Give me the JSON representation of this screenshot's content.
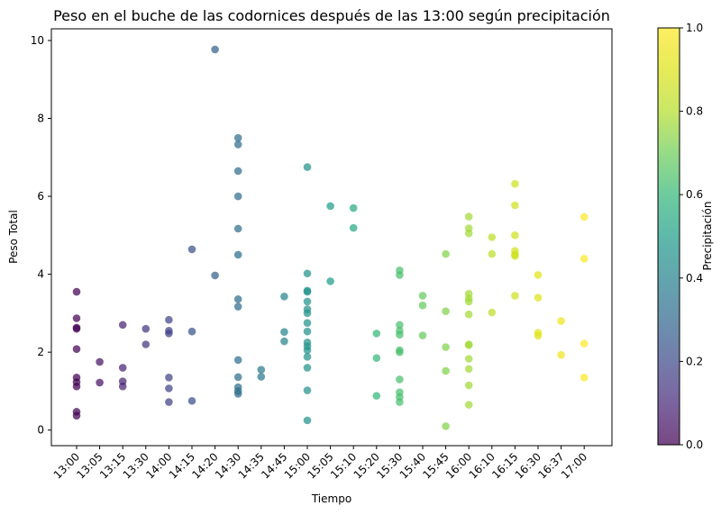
{
  "chart_data": {
    "type": "scatter",
    "title": "Peso en el buche de las codornices después de las 13:00 según precipitación",
    "xlabel": "Tiempo",
    "ylabel": "Peso Total",
    "ylim": [
      -0.4,
      10.3
    ],
    "yticks": [
      0,
      2,
      4,
      6,
      8,
      10
    ],
    "grid": false,
    "categories": [
      "13:00",
      "13:05",
      "13:15",
      "13:30",
      "14:00",
      "14:15",
      "14:20",
      "14:30",
      "14:35",
      "14:45",
      "15:00",
      "15:05",
      "15:10",
      "15:20",
      "15:30",
      "15:40",
      "15:45",
      "16:00",
      "16:10",
      "16:15",
      "16:30",
      "16:37",
      "17:00"
    ],
    "colorbar": {
      "label": "Precipitación",
      "range": [
        0,
        1
      ],
      "ticks": [
        0.0,
        0.2,
        0.4,
        0.6,
        0.8,
        1.0
      ],
      "tick_labels": [
        "0.0",
        "0.2",
        "0.4",
        "0.6",
        "0.8",
        "1.0"
      ],
      "colormap": "viridis"
    },
    "points_by_time": [
      {
        "time": "13:00",
        "y": [
          3.55,
          2.87,
          2.63,
          2.6,
          2.08,
          1.35,
          1.23,
          1.12,
          0.47,
          0.37
        ]
      },
      {
        "time": "13:05",
        "y": [
          1.75,
          1.22
        ]
      },
      {
        "time": "13:15",
        "y": [
          2.7,
          1.6,
          1.25,
          1.12
        ]
      },
      {
        "time": "13:30",
        "y": [
          2.6,
          2.2
        ]
      },
      {
        "time": "14:00",
        "y": [
          2.83,
          2.55,
          2.48,
          1.35,
          1.07,
          0.72
        ]
      },
      {
        "time": "14:15",
        "y": [
          4.64,
          2.53,
          0.75
        ]
      },
      {
        "time": "14:20",
        "y": [
          9.77,
          3.97
        ]
      },
      {
        "time": "14:30",
        "y": [
          7.5,
          7.33,
          6.65,
          6.0,
          5.17,
          4.5,
          3.36,
          3.17,
          1.8,
          1.36,
          1.1,
          1.0,
          0.93
        ]
      },
      {
        "time": "14:35",
        "y": [
          1.55,
          1.37
        ]
      },
      {
        "time": "14:45",
        "y": [
          3.43,
          2.52,
          2.28
        ]
      },
      {
        "time": "15:00",
        "y": [
          6.75,
          4.02,
          3.58,
          3.55,
          3.3,
          3.1,
          3.0,
          2.75,
          2.53,
          2.25,
          2.15,
          2.05,
          1.88,
          1.6,
          1.02,
          0.25
        ]
      },
      {
        "time": "15:05",
        "y": [
          5.75,
          3.82
        ]
      },
      {
        "time": "15:10",
        "y": [
          5.7,
          5.19
        ]
      },
      {
        "time": "15:20",
        "y": [
          2.48,
          1.85,
          0.88
        ]
      },
      {
        "time": "15:30",
        "y": [
          4.1,
          3.98,
          2.7,
          2.55,
          2.45,
          2.05,
          2.0,
          1.3,
          0.97,
          0.85,
          0.72
        ]
      },
      {
        "time": "15:40",
        "y": [
          3.45,
          3.2,
          2.43
        ]
      },
      {
        "time": "15:45",
        "y": [
          4.52,
          3.05,
          2.13,
          1.52,
          0.1
        ]
      },
      {
        "time": "16:00",
        "y": [
          5.48,
          5.18,
          5.05,
          3.5,
          3.38,
          3.3,
          2.97,
          2.2,
          2.18,
          1.83,
          1.57,
          1.15,
          0.65
        ]
      },
      {
        "time": "16:10",
        "y": [
          4.95,
          4.52,
          3.02
        ]
      },
      {
        "time": "16:15",
        "y": [
          6.32,
          5.77,
          5.0,
          4.6,
          4.5,
          4.47,
          3.45
        ]
      },
      {
        "time": "16:30",
        "y": [
          3.98,
          3.4,
          2.5,
          2.42
        ]
      },
      {
        "time": "16:37",
        "y": [
          2.8,
          1.93
        ]
      },
      {
        "time": "17:00",
        "y": [
          5.47,
          4.4,
          2.22,
          1.35
        ]
      }
    ]
  }
}
